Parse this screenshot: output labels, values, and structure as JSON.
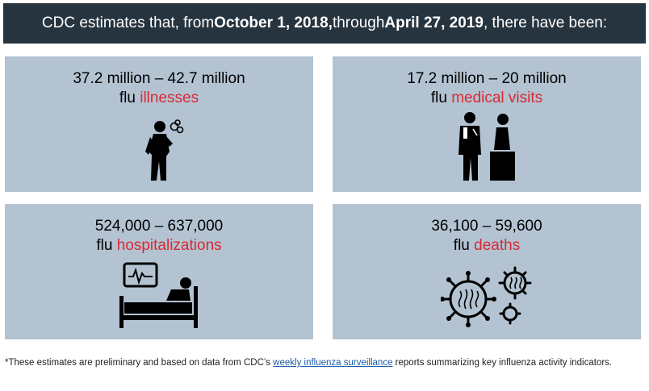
{
  "header": {
    "prefix": "CDC estimates that, from ",
    "start_date": "October 1, 2018,",
    "middle": " through ",
    "end_date": "April 27, 2019",
    "suffix": ", there have been:"
  },
  "cards": [
    {
      "value": "37.2 million – 42.7 million",
      "prefix": "flu ",
      "highlight": "illnesses",
      "icon": "sick-person-icon"
    },
    {
      "value": "17.2 million – 20 million",
      "prefix": "flu ",
      "highlight": "medical visits",
      "icon": "doctor-patient-icon"
    },
    {
      "value": "524,000 – 637,000",
      "prefix": "flu ",
      "highlight": "hospitalizations",
      "icon": "hospital-bed-icon"
    },
    {
      "value": "36,100 – 59,600",
      "prefix": "flu ",
      "highlight": "deaths",
      "icon": "virus-icon"
    }
  ],
  "footnote": {
    "before": "*These estimates are preliminary and based on data from CDC’s ",
    "link": " weekly influenza surveillance",
    "after": " reports summarizing key influenza activity indicators."
  },
  "colors": {
    "header_bg": "#26343f",
    "card_bg": "#b3c3d2",
    "highlight": "#d82a33",
    "link": "#1a5aa6"
  }
}
